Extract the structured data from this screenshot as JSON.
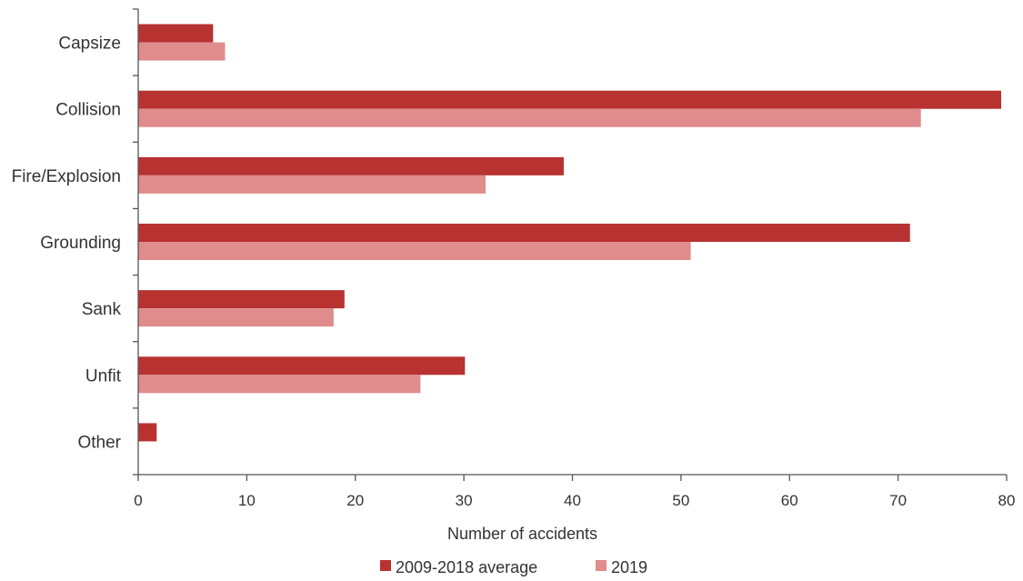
{
  "chart_data": {
    "type": "bar",
    "orientation": "horizontal",
    "categories": [
      "Capsize",
      "Collision",
      "Fire/Explosion",
      "Grounding",
      "Sank",
      "Unfit",
      "Other"
    ],
    "series": [
      {
        "name": "2009-2018 average",
        "color": "#b83232",
        "values": [
          6.9,
          79.5,
          39.2,
          71.1,
          19.0,
          30.1,
          1.7
        ]
      },
      {
        "name": "2019",
        "color": "#e08c8c",
        "values": [
          8.0,
          72.1,
          32.0,
          50.9,
          18.0,
          26.0,
          0
        ]
      }
    ],
    "xlabel": "Number of accidents",
    "xlim": [
      0,
      80
    ],
    "xticks": [
      0,
      10,
      20,
      30,
      40,
      50,
      60,
      70,
      80
    ],
    "grid": false,
    "legend_position": "bottom"
  }
}
